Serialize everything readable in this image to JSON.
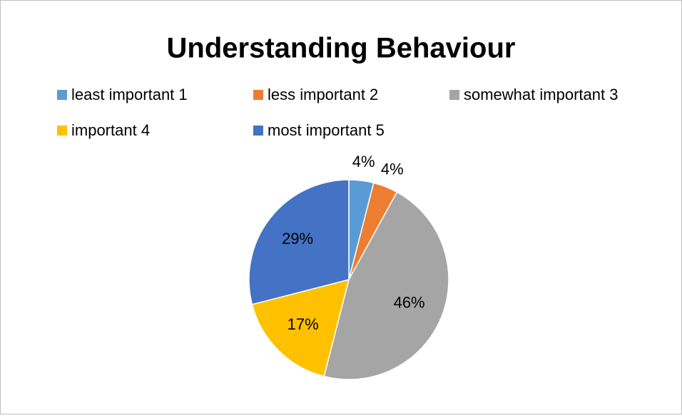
{
  "chart_data": {
    "type": "pie",
    "title": "Understanding Behaviour",
    "categories": [
      "least important 1",
      "less important 2",
      "somewhat important 3",
      "important 4",
      "most important 5"
    ],
    "values": [
      4,
      4,
      46,
      17,
      29
    ],
    "value_labels": [
      "4%",
      "4%",
      "46%",
      "17%",
      "29%"
    ],
    "colors": [
      "#5b9bd5",
      "#ed7d31",
      "#a5a5a5",
      "#ffc000",
      "#4472c4"
    ],
    "legend": "top"
  }
}
